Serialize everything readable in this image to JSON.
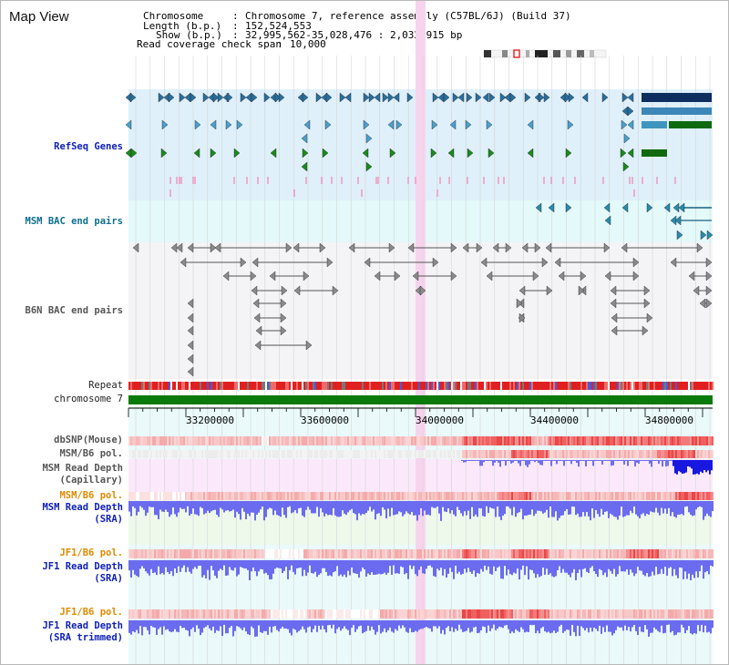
{
  "header": {
    "title": "Map View",
    "chromosome_label": "Chromosome",
    "chromosome_value": "Chromosome 7, reference assembly (C57BL/6J) (Build 37)",
    "length_label": "Length (b.p.)",
    "length_value": "152,524,553",
    "show_label": "Show (b.p.)",
    "show_value": "32,995,562-35,028,476 : 2,032,915 bp",
    "coverage_label": "Read coverage check span",
    "coverage_value": "10,000"
  },
  "tracks": {
    "refseq": "RefSeq Genes",
    "msm_bac": "MSM BAC end pairs",
    "b6n_bac": "B6N BAC end pairs",
    "repeat": "Repeat",
    "chromosome": "chromosome 7",
    "dbsnp": "dbSNP(Mouse)",
    "msm_b6_pol_1": "MSM/B6 pol.",
    "msm_depth_cap": "MSM Read Depth\n(Capillary)",
    "msm_b6_pol_2": "MSM/B6 pol.",
    "msm_depth_sra": "MSM Read Depth\n(SRA)",
    "jf1_b6_pol_1": "JF1/B6 pol.",
    "jf1_depth_sra": "JF1 Read Depth\n(SRA)",
    "jf1_b6_pol_2": "JF1/B6 pol.",
    "jf1_depth_trim": "JF1 Read Depth\n(SRA trimmed)"
  },
  "axis": {
    "ticks": [
      "33200000",
      "33600000",
      "34000000",
      "34400000",
      "34800000"
    ]
  },
  "colors": {
    "refseq_bg": "#dff0fa",
    "msm_bac_bg": "#e4f9f9",
    "b6n_bg": "#f4f4f6",
    "highlight": "#f7d4ee",
    "chromosome": "#0a7a0a",
    "depth": "#6b6bf0",
    "pol": "#f07070"
  }
}
